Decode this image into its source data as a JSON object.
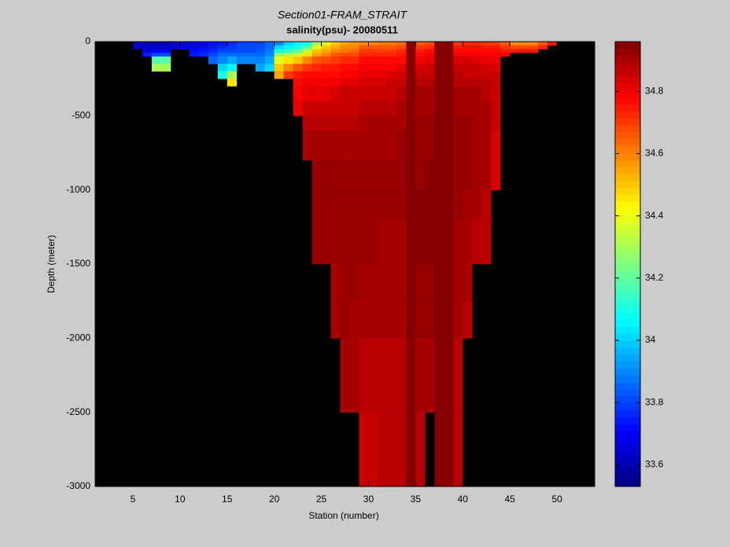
{
  "chart_data": {
    "type": "heatmap",
    "title": "Section01-FRAM_STRAIT",
    "subtitle": "salinity(psu)- 20080511",
    "xlabel": "Station (number)",
    "ylabel": "Depth (meter)",
    "xlim": [
      1,
      54
    ],
    "xticks": [
      5,
      10,
      15,
      20,
      25,
      30,
      35,
      40,
      45,
      50
    ],
    "ylim": [
      -3000,
      0
    ],
    "yticks": [
      -3000,
      -2500,
      -2000,
      -1500,
      -1000,
      -500,
      0
    ],
    "clim": [
      33.53,
      34.96
    ],
    "cticks": [
      33.6,
      33.8,
      34,
      34.2,
      34.4,
      34.6,
      34.8
    ],
    "colormap": "jet",
    "background": "#000000",
    "x": [
      5,
      6,
      7,
      8,
      9,
      10,
      11,
      12,
      13,
      14,
      15,
      16,
      17,
      18,
      19,
      20,
      21,
      22,
      23,
      24,
      25,
      26,
      27,
      28,
      29,
      30,
      31,
      32,
      33,
      34,
      35,
      36,
      37,
      38,
      39,
      40,
      41,
      42,
      43,
      44,
      45,
      46,
      47,
      48,
      49
    ],
    "depth_edges": [
      0,
      -25,
      -50,
      -75,
      -100,
      -150,
      -200,
      -250,
      -300,
      -400,
      -500,
      -600,
      -800,
      -1000,
      -1200,
      -1500,
      -1750,
      -2000,
      -2500,
      -3000
    ],
    "values": [
      [
        33.62,
        33.64
      ],
      [
        33.6,
        33.62,
        33.66,
        33.75
      ],
      [
        33.6,
        33.62,
        33.7,
        33.8,
        34.2,
        34.3
      ],
      [
        33.6,
        33.62,
        33.7,
        33.8,
        34.2,
        34.3
      ],
      [
        33.65,
        33.66
      ],
      [
        33.65,
        33.68
      ],
      [
        33.66,
        33.7,
        33.72,
        33.74
      ],
      [
        33.7,
        33.72,
        33.74,
        33.76
      ],
      [
        33.72,
        33.74,
        33.76,
        33.8,
        33.85
      ],
      [
        33.74,
        33.76,
        33.8,
        33.85,
        33.9,
        34.0,
        34.1
      ],
      [
        33.76,
        33.78,
        33.82,
        33.86,
        33.95,
        34.05,
        34.3,
        34.45
      ],
      [
        33.8,
        33.8,
        33.82,
        33.85,
        33.9
      ],
      [
        33.8,
        33.8,
        33.82,
        33.85,
        33.9
      ],
      [
        33.8,
        33.82,
        33.84,
        33.86,
        33.9,
        33.95
      ],
      [
        33.85,
        33.86,
        33.88,
        33.9,
        33.95,
        34.0
      ],
      [
        33.9,
        34.0,
        34.1,
        34.25,
        34.4,
        34.5,
        34.55
      ],
      [
        34.0,
        34.05,
        34.15,
        34.3,
        34.45,
        34.6,
        34.7
      ],
      [
        34.05,
        34.1,
        34.2,
        34.35,
        34.5,
        34.65,
        34.75,
        34.78,
        34.8,
        34.82
      ],
      [
        34.1,
        34.2,
        34.35,
        34.45,
        34.6,
        34.7,
        34.78,
        34.8,
        34.82,
        34.85,
        34.88,
        34.9
      ],
      [
        34.3,
        34.4,
        34.5,
        34.55,
        34.65,
        34.72,
        34.78,
        34.8,
        34.82,
        34.85,
        34.88,
        34.9,
        34.92,
        34.92,
        34.92
      ],
      [
        34.4,
        34.5,
        34.55,
        34.6,
        34.68,
        34.74,
        34.78,
        34.8,
        34.82,
        34.85,
        34.88,
        34.9,
        34.92,
        34.92,
        34.92
      ],
      [
        34.5,
        34.55,
        34.6,
        34.65,
        34.7,
        34.75,
        34.78,
        34.8,
        34.84,
        34.86,
        34.88,
        34.9,
        34.93,
        34.92,
        34.92,
        34.9,
        34.9
      ],
      [
        34.55,
        34.6,
        34.62,
        34.68,
        34.72,
        34.76,
        34.8,
        34.82,
        34.85,
        34.87,
        34.89,
        34.9,
        34.92,
        34.92,
        34.93,
        34.92,
        34.92,
        34.9
      ],
      [
        34.56,
        34.6,
        34.64,
        34.68,
        34.73,
        34.77,
        34.8,
        34.82,
        34.85,
        34.87,
        34.89,
        34.91,
        34.92,
        34.93,
        34.92,
        34.92,
        34.91,
        34.9
      ],
      [
        34.6,
        34.65,
        34.7,
        34.72,
        34.76,
        34.8,
        34.82,
        34.84,
        34.86,
        34.88,
        34.9,
        34.9,
        34.92,
        34.92,
        34.92,
        34.91,
        34.9,
        34.88,
        34.87
      ],
      [
        34.6,
        34.65,
        34.7,
        34.72,
        34.76,
        34.8,
        34.82,
        34.84,
        34.86,
        34.88,
        34.9,
        34.9,
        34.92,
        34.92,
        34.92,
        34.91,
        34.9,
        34.88,
        34.87
      ],
      [
        34.62,
        34.66,
        34.7,
        34.73,
        34.77,
        34.8,
        34.82,
        34.84,
        34.87,
        34.89,
        34.9,
        34.91,
        34.92,
        34.92,
        34.91,
        34.91,
        34.9,
        34.89,
        34.88
      ],
      [
        34.62,
        34.66,
        34.7,
        34.73,
        34.77,
        34.8,
        34.83,
        34.85,
        34.87,
        34.89,
        34.9,
        34.91,
        34.92,
        34.92,
        34.91,
        34.91,
        34.9,
        34.89,
        34.88
      ],
      [
        34.64,
        34.68,
        34.72,
        34.75,
        34.78,
        34.81,
        34.83,
        34.85,
        34.88,
        34.9,
        34.91,
        34.92,
        34.92,
        34.92,
        34.91,
        34.9,
        34.9,
        34.89,
        34.88
      ],
      [
        34.95,
        34.95,
        34.95,
        34.95,
        34.95,
        34.95,
        34.95,
        34.95,
        34.95,
        34.95,
        34.95,
        34.95,
        34.95,
        34.95,
        34.95,
        34.95,
        34.95,
        34.95,
        34.95
      ],
      [
        34.66,
        34.7,
        34.74,
        34.78,
        34.8,
        34.83,
        34.86,
        34.88,
        34.9,
        34.91,
        34.92,
        34.93,
        34.93,
        34.94,
        34.94,
        34.93,
        34.92,
        34.9,
        34.89
      ],
      [
        34.68,
        34.72,
        34.76,
        34.8,
        34.82,
        34.85,
        34.87,
        34.89,
        34.9,
        34.91,
        34.92,
        34.93,
        34.94,
        34.94,
        34.94,
        34.93,
        34.92,
        34.9
      ],
      [
        34.95,
        34.95,
        34.95,
        34.95,
        34.95,
        34.95,
        34.95,
        34.95,
        34.95,
        34.95,
        34.95,
        34.95,
        34.95,
        34.95,
        34.95,
        34.95,
        34.95,
        34.95,
        34.95
      ],
      [
        34.95,
        34.95,
        34.95,
        34.95,
        34.95,
        34.95,
        34.95,
        34.95,
        34.95,
        34.95,
        34.95,
        34.95,
        34.95,
        34.95,
        34.95,
        34.95,
        34.95,
        34.95,
        34.95
      ],
      [
        34.7,
        34.74,
        34.78,
        34.8,
        34.83,
        34.86,
        34.88,
        34.89,
        34.9,
        34.91,
        34.92,
        34.92,
        34.92,
        34.92,
        34.91,
        34.9,
        34.9,
        34.89,
        34.88
      ],
      [
        34.72,
        34.76,
        34.78,
        34.8,
        34.83,
        34.85,
        34.87,
        34.89,
        34.9,
        34.91,
        34.92,
        34.92,
        34.92,
        34.91,
        34.91,
        34.9,
        34.89
      ],
      [
        34.72,
        34.76,
        34.78,
        34.8,
        34.82,
        34.85,
        34.87,
        34.88,
        34.9,
        34.9,
        34.91,
        34.91,
        34.9,
        34.9,
        34.89
      ],
      [
        34.7,
        34.75,
        34.78,
        34.8,
        34.82,
        34.84,
        34.86,
        34.88,
        34.89,
        34.9,
        34.9,
        34.91,
        34.9,
        34.89,
        34.88
      ],
      [
        34.7,
        34.74,
        34.77,
        34.79,
        34.81,
        34.83,
        34.85,
        34.86,
        34.86,
        34.86,
        34.85,
        34.84,
        34.84
      ],
      [
        34.65,
        34.7,
        34.75,
        34.8
      ],
      [
        34.6,
        34.68,
        34.75
      ],
      [
        34.6,
        34.68,
        34.75
      ],
      [
        34.6,
        34.68,
        34.75
      ],
      [
        34.65,
        34.72
      ],
      [
        34.75
      ]
    ]
  }
}
